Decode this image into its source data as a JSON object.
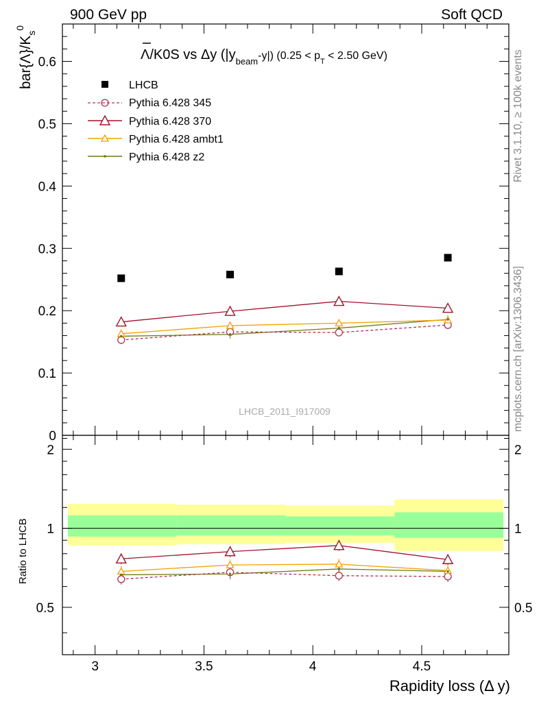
{
  "header": {
    "left": "900 GeV pp",
    "right": "Soft QCD"
  },
  "side_text": {
    "rivet": "Rivet 3.1.10, ≥ 100k events",
    "mcplots": "mcplots.cern.ch [arXiv:1306.3436]"
  },
  "watermark": "LHCB_2011_I917009",
  "colors": {
    "lhcb": "#000000",
    "p345": "#b03050",
    "p370": "#a0122c",
    "ambt1": "#f0a000",
    "z2": "#6b7a10",
    "band_outer": "#ffff99",
    "band_inner": "#99ff99"
  },
  "chart_data": [
    {
      "type": "scatter",
      "panel": "main",
      "title_parts": {
        "main": "Λ/K0S vs Δy (|y",
        "sub": "beam",
        "mid": "-y|) (0.25 < p",
        "sub2": "T",
        "end": " < 2.50 GeV)"
      },
      "ylabel": "bar{Λ}/K",
      "ylabel_sub": "s",
      "ylabel_sup": "0",
      "xlim": [
        2.85,
        4.9
      ],
      "ylim": [
        0,
        0.66
      ],
      "yticks": [
        0.1,
        0.2,
        0.3,
        0.4,
        0.5,
        0.6
      ],
      "ytick_labels": [
        "0.1",
        "0.2",
        "0.3",
        "0.4",
        "0.5",
        "0.6"
      ],
      "ytick_zero": "0",
      "x": [
        3.12,
        3.62,
        4.12,
        4.62
      ],
      "bin_edges": [
        2.875,
        3.375,
        3.875,
        4.375,
        4.875
      ],
      "series": [
        {
          "name": "LHCB",
          "style": "square",
          "values": [
            0.252,
            0.258,
            0.263,
            0.285
          ]
        },
        {
          "name": "Pythia 6.428 345",
          "style": "circle-dashed",
          "values": [
            0.153,
            0.166,
            0.165,
            0.177
          ]
        },
        {
          "name": "Pythia 6.428 370",
          "style": "triangle-big",
          "values": [
            0.182,
            0.199,
            0.215,
            0.204
          ]
        },
        {
          "name": "Pythia 6.428 ambt1",
          "style": "triangle-small",
          "values": [
            0.163,
            0.176,
            0.18,
            0.185
          ]
        },
        {
          "name": "Pythia 6.428 z2",
          "style": "dot",
          "values": [
            0.159,
            0.162,
            0.172,
            0.186
          ]
        }
      ]
    },
    {
      "type": "line",
      "panel": "ratio",
      "ylabel": "Ratio to LHCB",
      "xlabel": "Rapidity loss (Δ y)",
      "xlim": [
        2.85,
        4.9
      ],
      "ylim": [
        0.33,
        2.26
      ],
      "xticks": [
        3,
        3.5,
        4,
        4.5
      ],
      "xtick_labels": [
        "3",
        "3.5",
        "4",
        "4.5"
      ],
      "yticks": [
        0.5,
        1,
        2
      ],
      "ytick_labels": [
        "0.5",
        "1",
        "2"
      ],
      "bands": [
        {
          "x0": 2.875,
          "x1": 3.375,
          "outer": [
            0.86,
            1.24
          ],
          "inner": [
            0.93,
            1.12
          ]
        },
        {
          "x0": 3.375,
          "x1": 3.875,
          "outer": [
            0.87,
            1.23
          ],
          "inner": [
            0.94,
            1.12
          ]
        },
        {
          "x0": 3.875,
          "x1": 4.375,
          "outer": [
            0.88,
            1.22
          ],
          "inner": [
            0.94,
            1.11
          ]
        },
        {
          "x0": 4.375,
          "x1": 4.875,
          "outer": [
            0.82,
            1.29
          ],
          "inner": [
            0.92,
            1.15
          ]
        }
      ],
      "series": [
        {
          "name": "Pythia 6.428 345",
          "values": [
            0.64,
            0.68,
            0.66,
            0.655
          ]
        },
        {
          "name": "Pythia 6.428 370",
          "values": [
            0.765,
            0.815,
            0.86,
            0.76
          ]
        },
        {
          "name": "Pythia 6.428 ambt1",
          "values": [
            0.685,
            0.725,
            0.73,
            0.69
          ]
        },
        {
          "name": "Pythia 6.428 z2",
          "values": [
            0.665,
            0.67,
            0.7,
            0.685
          ]
        }
      ]
    }
  ]
}
